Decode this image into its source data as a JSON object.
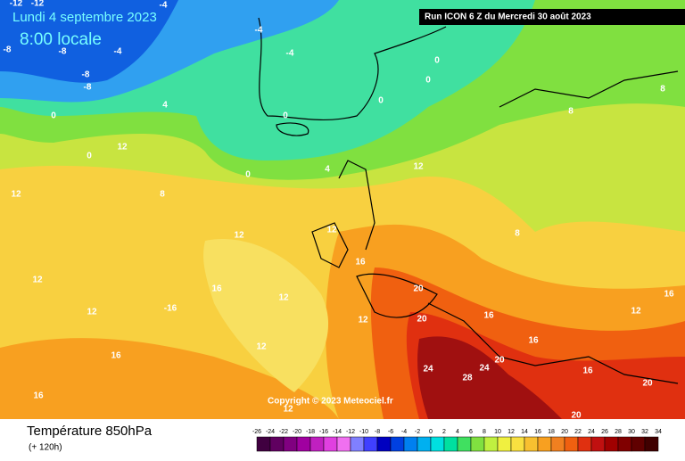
{
  "header": {
    "date": "Lundi 4 septembre 2023",
    "time": "8:00 locale",
    "run": "Run ICON 6 Z du Mercredi 30 août 2023"
  },
  "copyright": "Copyright © 2023 Meteociel.fr",
  "footer": {
    "title": "Température 850hPa",
    "subtitle": "(+ 120h)"
  },
  "legend": {
    "labels": [
      -26,
      -24,
      -22,
      -20,
      -18,
      -16,
      -14,
      -12,
      -10,
      -8,
      -6,
      -4,
      -2,
      0,
      2,
      4,
      6,
      8,
      10,
      12,
      14,
      16,
      18,
      20,
      22,
      24,
      26,
      28,
      30,
      32,
      34
    ],
    "colors": [
      "#400040",
      "#600060",
      "#800080",
      "#a000a0",
      "#c020c0",
      "#e040e0",
      "#f070f0",
      "#8080ff",
      "#4040ff",
      "#0000c0",
      "#0040e0",
      "#0080f0",
      "#00b0f0",
      "#00e0e0",
      "#00e0a0",
      "#40e060",
      "#80e040",
      "#c0f040",
      "#f0f040",
      "#f8e040",
      "#f8c030",
      "#f8a020",
      "#f08020",
      "#f06010",
      "#e03010",
      "#c01010",
      "#a00000",
      "#800000",
      "#600000",
      "#400000"
    ]
  },
  "map_labels": [
    -12,
    -12,
    -4,
    -8,
    -8,
    -4,
    -4,
    -4,
    -8,
    -8,
    0,
    4,
    0,
    0,
    0,
    0,
    12,
    0,
    0,
    4,
    12,
    8,
    12,
    12,
    12,
    16,
    12,
    16,
    12,
    -16,
    12,
    20,
    20,
    16,
    16,
    24,
    28,
    24,
    20,
    16,
    20,
    8,
    8,
    12,
    16,
    16,
    16,
    12,
    12,
    12,
    20,
    8
  ]
}
